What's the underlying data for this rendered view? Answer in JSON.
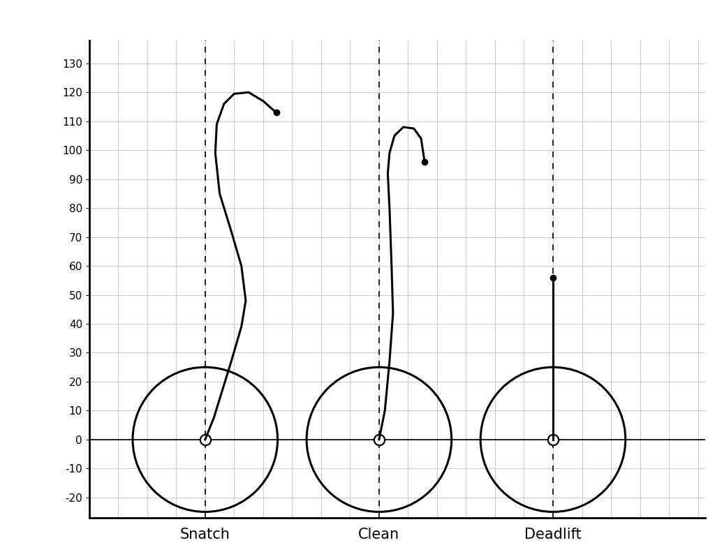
{
  "chart_data": {
    "type": "line",
    "categories": [
      "Snatch",
      "Clean",
      "Deadlift"
    ],
    "series": [
      {
        "x": [
          0,
          3,
          9,
          12.5,
          14,
          12.5,
          9,
          5,
          3.5,
          4,
          6.5,
          10,
          15,
          20,
          24.5
        ],
        "values": [
          0,
          7.5,
          27,
          39,
          48,
          60,
          72,
          85,
          99,
          109,
          116,
          119.5,
          120,
          117,
          113
        ]
      },
      {
        "x": [
          0,
          2,
          3.6,
          4.8,
          4.3,
          3.6,
          3,
          3.6,
          5.3,
          8.4,
          12,
          14.5,
          15.7
        ],
        "values": [
          0,
          10,
          27,
          43.6,
          60.5,
          80,
          92,
          99,
          105,
          108,
          107.5,
          104,
          96
        ]
      },
      {
        "x": [
          0,
          0
        ],
        "values": [
          0,
          56
        ]
      }
    ],
    "plate_radius": 25,
    "color": "#000000",
    "marker": "o",
    "ylim": [
      -27,
      138
    ],
    "yticks": [
      -20,
      -10,
      0,
      10,
      20,
      30,
      40,
      50,
      60,
      70,
      80,
      90,
      100,
      110,
      120,
      130
    ],
    "grid": true
  }
}
